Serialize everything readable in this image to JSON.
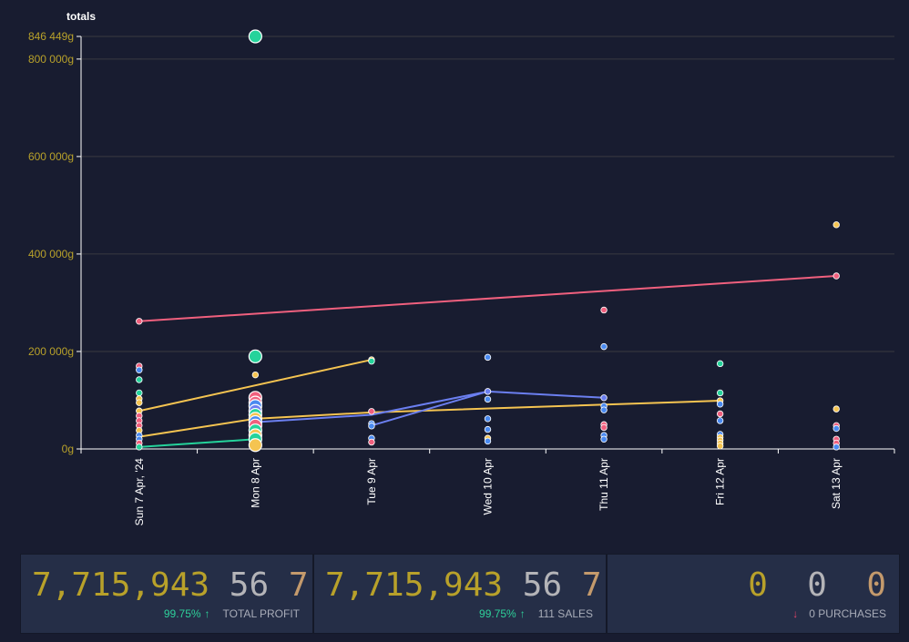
{
  "chart_data": {
    "type": "scatter",
    "title": "totals",
    "y_unit": "g",
    "ylim": [
      0,
      846449
    ],
    "y_ticks": [
      0,
      200000,
      400000,
      600000,
      800000,
      846449
    ],
    "y_tick_labels": [
      "0g",
      "200 000g",
      "400 000g",
      "600 000g",
      "800 000g",
      "846 449g"
    ],
    "categories": [
      "Sun 7 Apr, '24",
      "Mon 8 Apr",
      "Tue 9 Apr",
      "Wed 10 Apr",
      "Thu 11 Apr",
      "Fri 12 Apr",
      "Sat 13 Apr"
    ],
    "grid": true,
    "lines": [
      {
        "color": "#f0607e",
        "points": [
          [
            0,
            262000
          ],
          [
            6,
            355000
          ]
        ]
      },
      {
        "color": "#f5c451",
        "points": [
          [
            0,
            78000
          ],
          [
            2,
            183000
          ]
        ]
      },
      {
        "color": "#f5c451",
        "points": [
          [
            0,
            25000
          ],
          [
            1,
            62000
          ],
          [
            2,
            75000
          ],
          [
            5,
            99000
          ]
        ]
      },
      {
        "color": "#6b7ff0",
        "points": [
          [
            1,
            55000
          ],
          [
            2,
            70000
          ],
          [
            3,
            118000
          ],
          [
            4,
            105000
          ]
        ]
      },
      {
        "color": "#6b7ff0",
        "points": [
          [
            2,
            48000
          ],
          [
            3,
            118000
          ]
        ]
      },
      {
        "color": "#25d39b",
        "points": [
          [
            0,
            4000
          ],
          [
            1,
            20000
          ]
        ]
      }
    ],
    "points": [
      {
        "x": 0,
        "y": 170000,
        "color": "#f0607e"
      },
      {
        "x": 0,
        "y": 162000,
        "color": "#4a8af0"
      },
      {
        "x": 0,
        "y": 142000,
        "color": "#25d39b"
      },
      {
        "x": 0,
        "y": 115000,
        "color": "#25d39b"
      },
      {
        "x": 0,
        "y": 103000,
        "color": "#f5c451"
      },
      {
        "x": 0,
        "y": 95000,
        "color": "#f5c451"
      },
      {
        "x": 0,
        "y": 78000,
        "color": "#f5c451"
      },
      {
        "x": 0,
        "y": 68000,
        "color": "#f0607e"
      },
      {
        "x": 0,
        "y": 58000,
        "color": "#f0607e"
      },
      {
        "x": 0,
        "y": 48000,
        "color": "#f0607e"
      },
      {
        "x": 0,
        "y": 38000,
        "color": "#f5c451"
      },
      {
        "x": 0,
        "y": 28000,
        "color": "#4a8af0"
      },
      {
        "x": 0,
        "y": 20000,
        "color": "#4a8af0"
      },
      {
        "x": 0,
        "y": 12000,
        "color": "#f0607e"
      },
      {
        "x": 0,
        "y": 4000,
        "color": "#25d39b"
      },
      {
        "x": 0,
        "y": 262000,
        "color": "#f0607e"
      },
      {
        "x": 1,
        "y": 846449,
        "color": "#25d39b",
        "size": "large"
      },
      {
        "x": 1,
        "y": 190000,
        "color": "#25d39b",
        "size": "large"
      },
      {
        "x": 1,
        "y": 152000,
        "color": "#f5c451"
      },
      {
        "x": 1,
        "y": 105000,
        "color": "#f0607e",
        "size": "large"
      },
      {
        "x": 1,
        "y": 95000,
        "color": "#f0607e",
        "size": "large"
      },
      {
        "x": 1,
        "y": 88000,
        "color": "#4a8af0",
        "size": "large"
      },
      {
        "x": 1,
        "y": 78000,
        "color": "#6b7ff0",
        "size": "large"
      },
      {
        "x": 1,
        "y": 70000,
        "color": "#25d39b",
        "size": "large"
      },
      {
        "x": 1,
        "y": 62000,
        "color": "#f5c451",
        "size": "large"
      },
      {
        "x": 1,
        "y": 55000,
        "color": "#4a8af0",
        "size": "large"
      },
      {
        "x": 1,
        "y": 48000,
        "color": "#f0607e",
        "size": "large"
      },
      {
        "x": 1,
        "y": 38000,
        "color": "#25d39b",
        "size": "large"
      },
      {
        "x": 1,
        "y": 28000,
        "color": "#f5c451",
        "size": "large"
      },
      {
        "x": 1,
        "y": 20000,
        "color": "#25d39b",
        "size": "large"
      },
      {
        "x": 1,
        "y": 8000,
        "color": "#f5c451",
        "size": "large"
      },
      {
        "x": 2,
        "y": 183000,
        "color": "#f5c451"
      },
      {
        "x": 2,
        "y": 180000,
        "color": "#25d39b"
      },
      {
        "x": 2,
        "y": 77000,
        "color": "#f0607e"
      },
      {
        "x": 2,
        "y": 52000,
        "color": "#4a8af0"
      },
      {
        "x": 2,
        "y": 47000,
        "color": "#4a8af0"
      },
      {
        "x": 2,
        "y": 22000,
        "color": "#4a8af0"
      },
      {
        "x": 2,
        "y": 14000,
        "color": "#f0607e"
      },
      {
        "x": 3,
        "y": 188000,
        "color": "#4a8af0"
      },
      {
        "x": 3,
        "y": 118000,
        "color": "#6b7ff0"
      },
      {
        "x": 3,
        "y": 102000,
        "color": "#4a8af0"
      },
      {
        "x": 3,
        "y": 62000,
        "color": "#4a8af0"
      },
      {
        "x": 3,
        "y": 40000,
        "color": "#4a8af0"
      },
      {
        "x": 3,
        "y": 22000,
        "color": "#f5c451"
      },
      {
        "x": 3,
        "y": 16000,
        "color": "#4a8af0"
      },
      {
        "x": 4,
        "y": 285000,
        "color": "#f0607e"
      },
      {
        "x": 4,
        "y": 210000,
        "color": "#4a8af0"
      },
      {
        "x": 4,
        "y": 105000,
        "color": "#6b7ff0"
      },
      {
        "x": 4,
        "y": 88000,
        "color": "#4a8af0"
      },
      {
        "x": 4,
        "y": 80000,
        "color": "#4a8af0"
      },
      {
        "x": 4,
        "y": 50000,
        "color": "#f0607e"
      },
      {
        "x": 4,
        "y": 44000,
        "color": "#f0607e"
      },
      {
        "x": 4,
        "y": 28000,
        "color": "#4a8af0"
      },
      {
        "x": 4,
        "y": 20000,
        "color": "#4a8af0"
      },
      {
        "x": 5,
        "y": 175000,
        "color": "#25d39b"
      },
      {
        "x": 5,
        "y": 115000,
        "color": "#25d39b"
      },
      {
        "x": 5,
        "y": 99000,
        "color": "#f5c451"
      },
      {
        "x": 5,
        "y": 92000,
        "color": "#4a8af0"
      },
      {
        "x": 5,
        "y": 72000,
        "color": "#f0607e"
      },
      {
        "x": 5,
        "y": 58000,
        "color": "#4a8af0"
      },
      {
        "x": 5,
        "y": 30000,
        "color": "#4a8af0"
      },
      {
        "x": 5,
        "y": 24000,
        "color": "#f5c451"
      },
      {
        "x": 5,
        "y": 18000,
        "color": "#f5c451"
      },
      {
        "x": 5,
        "y": 12000,
        "color": "#f5c451"
      },
      {
        "x": 5,
        "y": 6000,
        "color": "#f5c451"
      },
      {
        "x": 6,
        "y": 460000,
        "color": "#f5c451"
      },
      {
        "x": 6,
        "y": 355000,
        "color": "#f0607e"
      },
      {
        "x": 6,
        "y": 82000,
        "color": "#f5c451"
      },
      {
        "x": 6,
        "y": 48000,
        "color": "#f0607e"
      },
      {
        "x": 6,
        "y": 42000,
        "color": "#4a8af0"
      },
      {
        "x": 6,
        "y": 20000,
        "color": "#f0607e"
      },
      {
        "x": 6,
        "y": 12000,
        "color": "#f0607e"
      },
      {
        "x": 6,
        "y": 4000,
        "color": "#4a8af0"
      }
    ]
  },
  "stats": [
    {
      "value": "7,715,943",
      "num2": "56",
      "num3": "7",
      "pct": "99.75%",
      "arrow": "↑",
      "label": "TOTAL PROFIT"
    },
    {
      "value": "7,715,943",
      "num2": "56",
      "num3": "7",
      "pct": "99.75%",
      "arrow": "↑",
      "label": "111 SALES"
    },
    {
      "value": "0",
      "num2": "0",
      "num3": "0",
      "pct": "",
      "arrow": "↓",
      "label": "0 PURCHASES"
    }
  ],
  "colors": {
    "background": "#181c30",
    "card": "#252e47",
    "axis_text": "#b8a12a",
    "gold": "#b8a12a",
    "up": "#2ed09a",
    "down": "#e8456a"
  }
}
